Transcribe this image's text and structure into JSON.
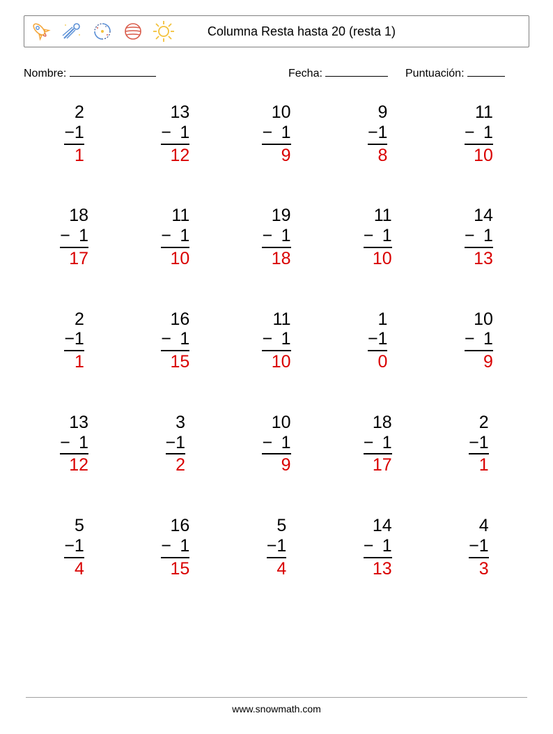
{
  "header": {
    "title": "Columna Resta hasta 20 (resta 1)",
    "icons": [
      "rocket",
      "comet",
      "galaxy",
      "planet",
      "sun"
    ]
  },
  "meta": {
    "name_label": "Nombre:",
    "date_label": "Fecha:",
    "score_label": "Puntuación:",
    "name_blank_width": 124,
    "date_blank_width": 90,
    "score_blank_width": 54
  },
  "colors": {
    "answer": "#d90000",
    "text": "#000000",
    "background": "#ffffff",
    "border": "#808080",
    "icon_orange": "#f4a63a",
    "icon_yellow": "#f3c23c",
    "icon_blue": "#5a8fd6",
    "icon_navy": "#2f4e8f",
    "icon_red": "#d95b4a",
    "icon_gray": "#9aa6b2"
  },
  "problems": [
    {
      "a": 2,
      "b": 1,
      "ans": 1
    },
    {
      "a": 13,
      "b": 1,
      "ans": 12
    },
    {
      "a": 10,
      "b": 1,
      "ans": 9
    },
    {
      "a": 9,
      "b": 1,
      "ans": 8
    },
    {
      "a": 11,
      "b": 1,
      "ans": 10
    },
    {
      "a": 18,
      "b": 1,
      "ans": 17
    },
    {
      "a": 11,
      "b": 1,
      "ans": 10
    },
    {
      "a": 19,
      "b": 1,
      "ans": 18
    },
    {
      "a": 11,
      "b": 1,
      "ans": 10
    },
    {
      "a": 14,
      "b": 1,
      "ans": 13
    },
    {
      "a": 2,
      "b": 1,
      "ans": 1
    },
    {
      "a": 16,
      "b": 1,
      "ans": 15
    },
    {
      "a": 11,
      "b": 1,
      "ans": 10
    },
    {
      "a": 1,
      "b": 1,
      "ans": 0
    },
    {
      "a": 10,
      "b": 1,
      "ans": 9
    },
    {
      "a": 13,
      "b": 1,
      "ans": 12
    },
    {
      "a": 3,
      "b": 1,
      "ans": 2
    },
    {
      "a": 10,
      "b": 1,
      "ans": 9
    },
    {
      "a": 18,
      "b": 1,
      "ans": 17
    },
    {
      "a": 2,
      "b": 1,
      "ans": 1
    },
    {
      "a": 5,
      "b": 1,
      "ans": 4
    },
    {
      "a": 16,
      "b": 1,
      "ans": 15
    },
    {
      "a": 5,
      "b": 1,
      "ans": 4
    },
    {
      "a": 14,
      "b": 1,
      "ans": 13
    },
    {
      "a": 4,
      "b": 1,
      "ans": 3
    }
  ],
  "footer": {
    "url": "www.snowmath.com"
  },
  "style": {
    "font_size_problem": 25,
    "font_size_title": 18,
    "font_size_meta": 16,
    "font_size_footer": 14,
    "grid_cols": 5,
    "grid_rows": 5,
    "row_gap": 58
  }
}
